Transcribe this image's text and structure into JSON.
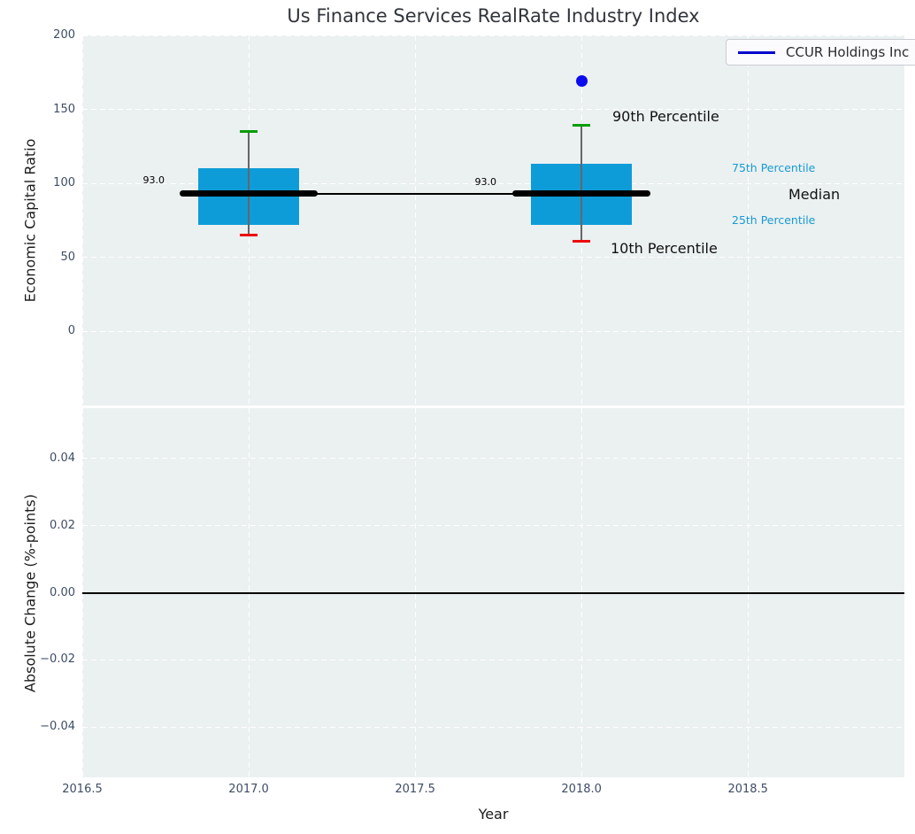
{
  "title": "Us Finance Services RealRate Industry Index",
  "legend": {
    "label": "CCUR Holdings Inc",
    "line_color": "#0000cc"
  },
  "axes": {
    "top": {
      "ylabel": "Economic Capital Ratio"
    },
    "bottom": {
      "ylabel": "Absolute Change (%-points)",
      "xlabel": "Year"
    }
  },
  "annotations": {
    "p90_label": "90th Percentile",
    "p75_label": "75th Percentile",
    "median_label": "Median",
    "p25_label": "25th Percentile",
    "p10_label": "10th Percentile",
    "median_value_2017": "93.0",
    "median_value_2018": "93.0"
  },
  "chart_data": [
    {
      "type": "boxplot",
      "title": "Us Finance Services RealRate Industry Index",
      "ylabel": "Economic Capital Ratio",
      "xlabel": "",
      "ylim": [
        -50,
        200
      ],
      "xlim": [
        2016.5,
        2018.97
      ],
      "yticks": [
        200,
        150,
        100,
        50,
        0
      ],
      "ytick_labels": [
        "200",
        "150",
        "100",
        "50",
        "0"
      ],
      "xticks": [
        2016.5,
        2017.0,
        2017.5,
        2018.0,
        2018.5
      ],
      "xtick_labels": [
        "2016.5",
        "2017.0",
        "2017.5",
        "2018.0",
        "2018.5"
      ],
      "grid": "white-dashed",
      "legend_position": "upper right",
      "boxes": [
        {
          "x": 2017,
          "whisker_low": 65,
          "q1": 72,
          "median": 93,
          "q3": 110,
          "whisker_high": 135,
          "median_label": "93.0"
        },
        {
          "x": 2018,
          "whisker_low": 61,
          "q1": 72,
          "median": 93,
          "q3": 113,
          "whisker_high": 139,
          "median_label": "93.0"
        }
      ],
      "median_trend_line": {
        "x": [
          2017,
          2018
        ],
        "y": [
          93,
          93
        ]
      },
      "scatter": [
        {
          "name": "CCUR Holdings Inc",
          "x": 2018,
          "y": 169
        }
      ],
      "colors": {
        "box_fill": "#0d9cd8",
        "whisker_high_cap": "#089d08",
        "whisker_low_cap": "#ee0b0b",
        "whisker_line": "#666666",
        "median_line": "#000000",
        "scatter_point": "#0b0bee",
        "percentile_text": "#199bd0",
        "axes_background": "#ebf0f1"
      }
    },
    {
      "type": "line",
      "ylabel": "Absolute Change (%-points)",
      "xlabel": "Year",
      "ylim": [
        -0.055,
        0.055
      ],
      "xlim": [
        2016.5,
        2018.97
      ],
      "yticks": [
        0.04,
        0.02,
        0.0,
        -0.02,
        -0.04
      ],
      "ytick_labels": [
        "0.04",
        "0.02",
        "0.00",
        "−0.02",
        "−0.04"
      ],
      "xticks": [
        2016.5,
        2017.0,
        2017.5,
        2018.0,
        2018.5
      ],
      "xtick_labels": [
        "2016.5",
        "2017.0",
        "2017.5",
        "2018.0",
        "2018.5"
      ],
      "grid": "white-dashed",
      "zero_line_y": 0.0,
      "series": []
    }
  ]
}
